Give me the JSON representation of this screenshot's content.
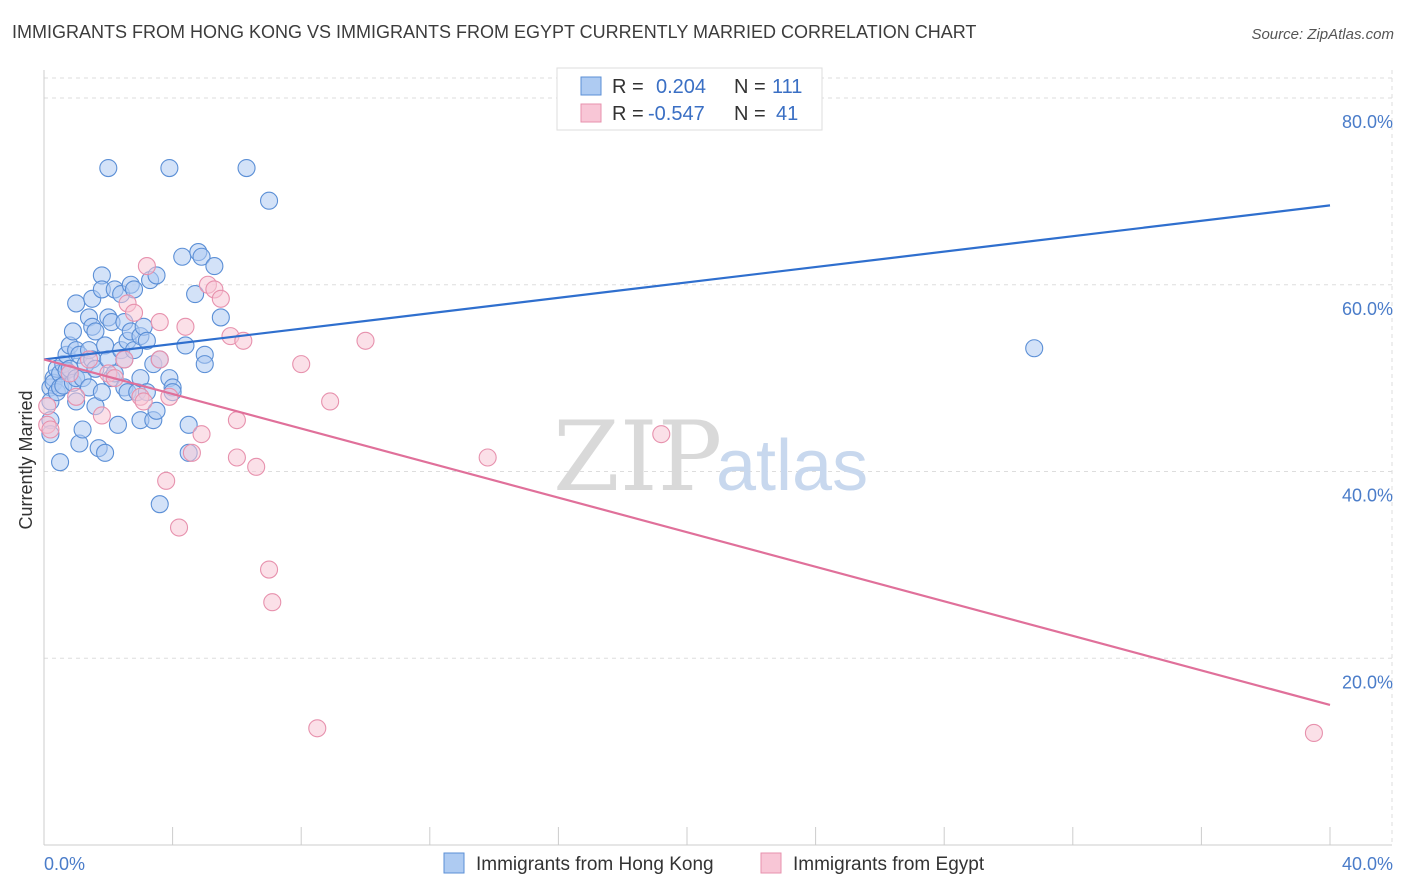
{
  "title": "IMMIGRANTS FROM HONG KONG VS IMMIGRANTS FROM EGYPT CURRENTLY MARRIED CORRELATION CHART",
  "source": "Source: ZipAtlas.com",
  "watermark": {
    "zip": "ZIP",
    "atlas": "atlas"
  },
  "colors": {
    "blue_fill": "#aecbf2",
    "blue_stroke": "#5b8fd6",
    "blue_line": "#2f6fce",
    "pink_fill": "#f8c6d6",
    "pink_stroke": "#e791ad",
    "pink_line": "#e0709a",
    "grid": "#dddddd",
    "tick_text": "#4a7cc9"
  },
  "legend": {
    "rows": [
      {
        "r_label": "R =",
        "r_value": "0.204",
        "n_label": "N =",
        "n_value": "111"
      },
      {
        "r_label": "R =",
        "r_value": "-0.547",
        "n_label": "N =",
        "n_value": "41"
      }
    ]
  },
  "chart_data": {
    "type": "scatter",
    "title": "IMMIGRANTS FROM HONG KONG VS IMMIGRANTS FROM EGYPT CURRENTLY MARRIED CORRELATION CHART",
    "xlabel": "",
    "ylabel": "Currently Married",
    "xlim": [
      0,
      40
    ],
    "ylim": [
      0,
      83
    ],
    "x_tick_labels": [
      {
        "value": 0,
        "label": "0.0%"
      },
      {
        "value": 40,
        "label": "40.0%"
      }
    ],
    "x_minor_ticks": [
      0,
      4,
      8,
      12,
      16,
      20,
      24,
      28,
      32,
      36,
      40
    ],
    "y_tick_labels": [
      {
        "value": 20,
        "label": "20.0%"
      },
      {
        "value": 40,
        "label": "40.0%"
      },
      {
        "value": 60,
        "label": "60.0%"
      },
      {
        "value": 80,
        "label": "80.0%"
      }
    ],
    "grid": true,
    "legend_position": "top-center",
    "series": [
      {
        "name": "Immigrants from Hong Kong",
        "color": "blue",
        "trend": {
          "x": [
            0,
            40
          ],
          "y": [
            52.0,
            68.5
          ]
        },
        "points": [
          [
            0.2,
            49
          ],
          [
            0.2,
            47.5
          ],
          [
            0.2,
            45.5
          ],
          [
            0.2,
            44
          ],
          [
            0.3,
            50
          ],
          [
            0.3,
            49.5
          ],
          [
            0.4,
            51
          ],
          [
            0.4,
            48.5
          ],
          [
            0.5,
            50.5
          ],
          [
            0.5,
            49
          ],
          [
            0.5,
            41
          ],
          [
            0.6,
            51.5
          ],
          [
            0.6,
            49.2
          ],
          [
            0.7,
            52.5
          ],
          [
            0.7,
            50.8
          ],
          [
            0.8,
            53.5
          ],
          [
            0.8,
            51
          ],
          [
            0.9,
            49.5
          ],
          [
            0.9,
            55
          ],
          [
            1.0,
            58
          ],
          [
            1.0,
            53
          ],
          [
            1.0,
            50
          ],
          [
            1.0,
            47.5
          ],
          [
            1.1,
            52.5
          ],
          [
            1.1,
            43
          ],
          [
            1.2,
            50
          ],
          [
            1.2,
            44.5
          ],
          [
            1.3,
            51.5
          ],
          [
            1.4,
            56.5
          ],
          [
            1.4,
            53
          ],
          [
            1.4,
            49
          ],
          [
            1.5,
            58.5
          ],
          [
            1.5,
            55.5
          ],
          [
            1.5,
            52
          ],
          [
            1.6,
            55
          ],
          [
            1.6,
            51
          ],
          [
            1.6,
            47
          ],
          [
            1.7,
            42.5
          ],
          [
            1.8,
            61
          ],
          [
            1.8,
            59.5
          ],
          [
            1.8,
            48.5
          ],
          [
            1.9,
            53.5
          ],
          [
            1.9,
            42
          ],
          [
            2.0,
            56.5
          ],
          [
            2.0,
            52
          ],
          [
            2.1,
            56
          ],
          [
            2.1,
            50
          ],
          [
            2.2,
            59.5
          ],
          [
            2.2,
            50.5
          ],
          [
            2.3,
            45
          ],
          [
            2.4,
            59
          ],
          [
            2.4,
            53
          ],
          [
            2.5,
            56
          ],
          [
            2.5,
            52
          ],
          [
            2.5,
            49
          ],
          [
            2.6,
            54
          ],
          [
            2.6,
            48.5
          ],
          [
            2.7,
            60
          ],
          [
            2.7,
            55
          ],
          [
            2.8,
            59.5
          ],
          [
            2.8,
            53
          ],
          [
            2.9,
            48.5
          ],
          [
            3.0,
            54.5
          ],
          [
            3.0,
            50
          ],
          [
            3.0,
            45.5
          ],
          [
            3.1,
            55.5
          ],
          [
            3.2,
            54
          ],
          [
            3.2,
            48.5
          ],
          [
            3.3,
            60.5
          ],
          [
            3.4,
            51.5
          ],
          [
            3.4,
            45.5
          ],
          [
            3.5,
            61
          ],
          [
            3.5,
            46.5
          ],
          [
            3.6,
            52
          ],
          [
            3.6,
            36.5
          ],
          [
            3.9,
            50
          ],
          [
            4.0,
            49
          ],
          [
            4.0,
            48.5
          ],
          [
            4.3,
            63
          ],
          [
            4.4,
            53.5
          ],
          [
            4.5,
            45
          ],
          [
            4.5,
            42
          ],
          [
            4.7,
            59
          ],
          [
            4.8,
            63.5
          ],
          [
            4.9,
            63
          ],
          [
            5.0,
            52.5
          ],
          [
            5.0,
            51.5
          ],
          [
            5.3,
            62
          ],
          [
            5.5,
            56.5
          ],
          [
            2.0,
            72.5
          ],
          [
            3.9,
            72.5
          ],
          [
            6.3,
            72.5
          ],
          [
            7.0,
            69
          ],
          [
            30.8,
            53.2
          ]
        ]
      },
      {
        "name": "Immigrants from Egypt",
        "color": "pink",
        "trend": {
          "x": [
            0,
            40
          ],
          "y": [
            52.0,
            15.0
          ]
        },
        "points": [
          [
            0.1,
            47
          ],
          [
            0.1,
            45
          ],
          [
            0.2,
            44.5
          ],
          [
            0.8,
            50.5
          ],
          [
            1.0,
            48
          ],
          [
            1.4,
            52
          ],
          [
            1.8,
            46
          ],
          [
            2.0,
            50.5
          ],
          [
            2.2,
            50
          ],
          [
            2.5,
            52
          ],
          [
            2.6,
            58
          ],
          [
            2.8,
            57
          ],
          [
            3.0,
            48
          ],
          [
            3.1,
            47.5
          ],
          [
            3.2,
            62
          ],
          [
            3.6,
            52
          ],
          [
            3.6,
            56
          ],
          [
            3.8,
            39
          ],
          [
            3.9,
            48
          ],
          [
            4.2,
            34
          ],
          [
            4.4,
            55.5
          ],
          [
            4.6,
            42
          ],
          [
            4.9,
            44
          ],
          [
            5.1,
            60
          ],
          [
            5.3,
            59.5
          ],
          [
            5.5,
            58.5
          ],
          [
            5.8,
            54.5
          ],
          [
            6.0,
            45.5
          ],
          [
            6.0,
            41.5
          ],
          [
            6.2,
            54
          ],
          [
            6.6,
            40.5
          ],
          [
            7.0,
            29.5
          ],
          [
            7.1,
            26
          ],
          [
            8.0,
            51.5
          ],
          [
            8.5,
            12.5
          ],
          [
            8.9,
            47.5
          ],
          [
            10.0,
            54
          ],
          [
            13.8,
            41.5
          ],
          [
            19.2,
            44
          ],
          [
            39.5,
            12
          ]
        ]
      }
    ]
  },
  "bottom_legend": [
    {
      "label": "Immigrants from Hong Kong"
    },
    {
      "label": "Immigrants from Egypt"
    }
  ]
}
